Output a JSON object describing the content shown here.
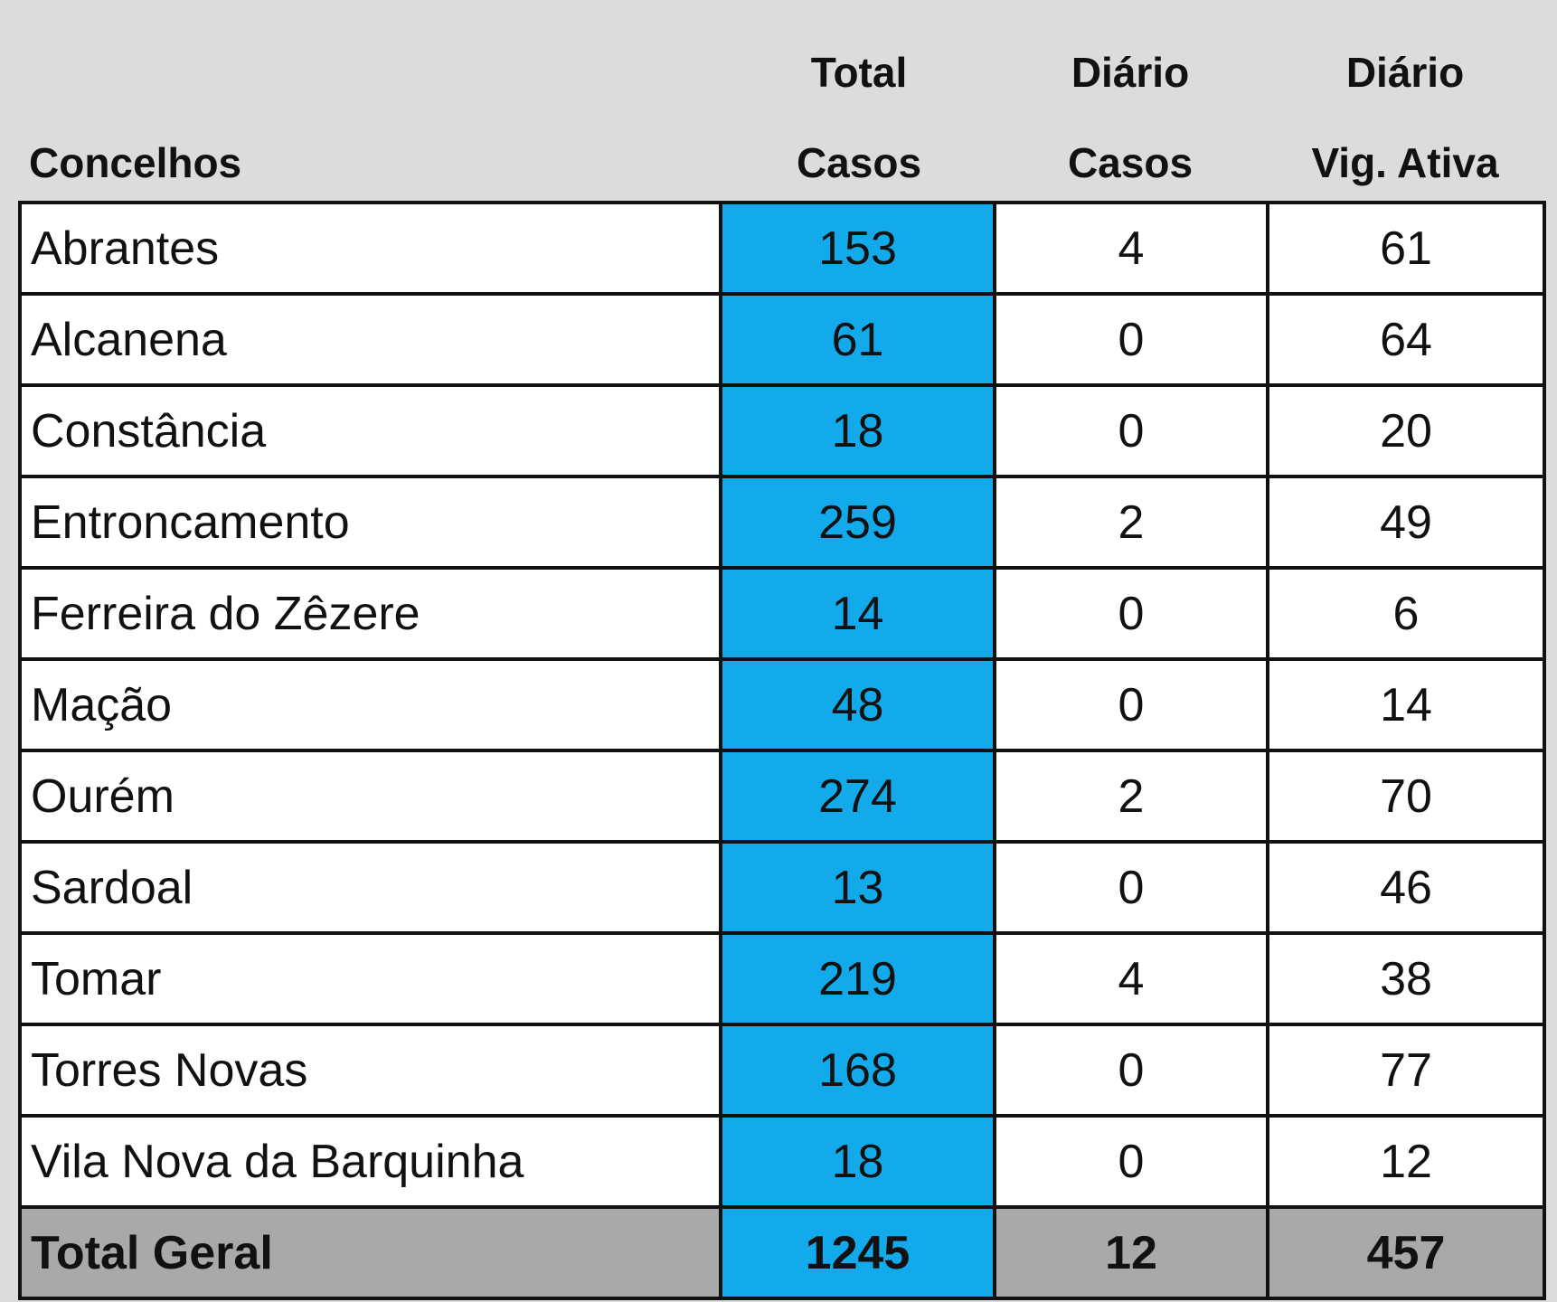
{
  "header": {
    "col_concelhos": "Concelhos",
    "col_total_line1": "Total",
    "col_total_line2": "Casos",
    "col_diario_casos_line1": "Diário",
    "col_diario_casos_line2": "Casos",
    "col_diario_vig_line1": "Diário",
    "col_diario_vig_line2": "Vig. Ativa"
  },
  "rows": [
    {
      "concelho": "Abrantes",
      "total_casos": "153",
      "diario_casos": "4",
      "diario_vig_ativa": "61"
    },
    {
      "concelho": "Alcanena",
      "total_casos": "61",
      "diario_casos": "0",
      "diario_vig_ativa": "64"
    },
    {
      "concelho": "Constância",
      "total_casos": "18",
      "diario_casos": "0",
      "diario_vig_ativa": "20"
    },
    {
      "concelho": "Entroncamento",
      "total_casos": "259",
      "diario_casos": "2",
      "diario_vig_ativa": "49"
    },
    {
      "concelho": "Ferreira do Zêzere",
      "total_casos": "14",
      "diario_casos": "0",
      "diario_vig_ativa": "6"
    },
    {
      "concelho": "Mação",
      "total_casos": "48",
      "diario_casos": "0",
      "diario_vig_ativa": "14"
    },
    {
      "concelho": "Ourém",
      "total_casos": "274",
      "diario_casos": "2",
      "diario_vig_ativa": "70"
    },
    {
      "concelho": "Sardoal",
      "total_casos": "13",
      "diario_casos": "0",
      "diario_vig_ativa": "46"
    },
    {
      "concelho": "Tomar",
      "total_casos": "219",
      "diario_casos": "4",
      "diario_vig_ativa": "38"
    },
    {
      "concelho": "Torres Novas",
      "total_casos": "168",
      "diario_casos": "0",
      "diario_vig_ativa": "77"
    },
    {
      "concelho": "Vila Nova da Barquinha",
      "total_casos": "18",
      "diario_casos": "0",
      "diario_vig_ativa": "12"
    }
  ],
  "total": {
    "label": "Total Geral",
    "total_casos": "1245",
    "diario_casos": "12",
    "diario_vig_ativa": "457"
  },
  "colors": {
    "highlight_column": "#12aaea",
    "total_row": "#a9a9a9",
    "background": "#dcdcdc"
  }
}
